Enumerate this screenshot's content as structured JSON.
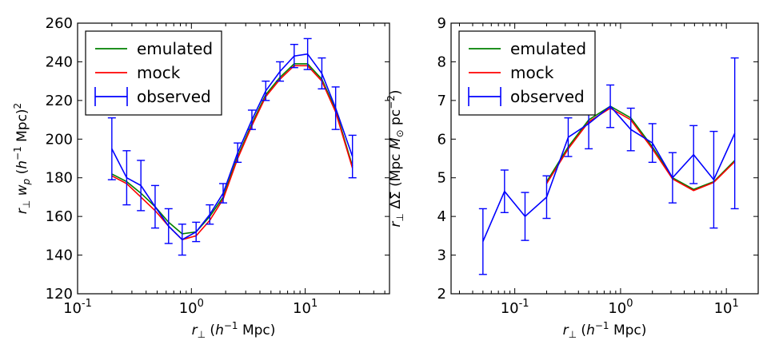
{
  "chart_data": [
    {
      "type": "line",
      "xscale": "log",
      "xlim": [
        0.1,
        55
      ],
      "ylim": [
        120,
        260
      ],
      "xlabel": "r⊥ (h⁻¹ Mpc)",
      "ylabel": "r⊥ wp (h⁻¹ Mpc)²",
      "x_tick_labels": [
        "10-1",
        "100",
        "101"
      ],
      "y_ticks": [
        120,
        140,
        160,
        180,
        200,
        220,
        240,
        260
      ],
      "legend_position": "top-left",
      "x": [
        0.2,
        0.27,
        0.36,
        0.48,
        0.63,
        0.83,
        1.1,
        1.45,
        1.9,
        2.55,
        3.4,
        4.5,
        6.0,
        8.0,
        10.5,
        14.0,
        18.5,
        26.0
      ],
      "series": [
        {
          "name": "emulated",
          "color": "#008000",
          "values": [
            182,
            178,
            172,
            165,
            157,
            151,
            152,
            160,
            170,
            191,
            208,
            223,
            232,
            239,
            239,
            231,
            215,
            186
          ]
        },
        {
          "name": "mock",
          "color": "#ff0000",
          "values": [
            181,
            177,
            170,
            163,
            155,
            148,
            150,
            158,
            169,
            190,
            207,
            222,
            231,
            238,
            238,
            230,
            214,
            185
          ]
        },
        {
          "name": "observed",
          "color": "#0000ff",
          "values": [
            195,
            180,
            176,
            165,
            155,
            148,
            152,
            161,
            172,
            193,
            210,
            225,
            235,
            243,
            244,
            234,
            216,
            191
          ],
          "errors": [
            16,
            14,
            13,
            11,
            9,
            8,
            5,
            5,
            5,
            5,
            5,
            5,
            5,
            6,
            8,
            8,
            11,
            11
          ]
        }
      ]
    },
    {
      "type": "line",
      "xscale": "log",
      "xlim": [
        0.025,
        20
      ],
      "ylim": [
        2,
        9
      ],
      "xlabel": "r⊥ (h⁻¹ Mpc)",
      "ylabel": "r⊥ ΔΣ (Mpc M⊙ pc⁻²)",
      "x_tick_labels": [
        "10-1",
        "100",
        "101"
      ],
      "y_ticks": [
        2,
        3,
        4,
        5,
        6,
        7,
        8,
        9
      ],
      "legend_position": "top-left",
      "x": [
        0.05,
        0.08,
        0.125,
        0.2,
        0.32,
        0.5,
        0.8,
        1.25,
        2.0,
        3.1,
        4.9,
        7.6,
        12.0
      ],
      "series": [
        {
          "name": "emulated",
          "color": "#008000",
          "x": [
            0.2,
            0.32,
            0.5,
            0.8,
            1.25,
            2.0,
            3.1,
            4.9,
            7.6,
            12.0
          ],
          "values": [
            4.9,
            5.8,
            6.5,
            6.85,
            6.55,
            5.8,
            5.0,
            4.7,
            4.9,
            5.45
          ]
        },
        {
          "name": "mock",
          "color": "#ff0000",
          "x": [
            0.2,
            0.32,
            0.5,
            0.8,
            1.25,
            2.0,
            3.1,
            4.9,
            7.6,
            12.0
          ],
          "values": [
            4.85,
            5.75,
            6.45,
            6.8,
            6.5,
            5.75,
            4.97,
            4.67,
            4.88,
            5.42
          ]
        },
        {
          "name": "observed",
          "color": "#0000ff",
          "x": [
            0.05,
            0.08,
            0.125,
            0.2,
            0.32,
            0.5,
            0.8,
            1.25,
            2.0,
            3.1,
            4.9,
            7.6,
            12.0
          ],
          "values": [
            3.35,
            4.65,
            4.0,
            4.5,
            6.05,
            6.4,
            6.85,
            6.25,
            5.9,
            5.0,
            5.6,
            4.95,
            6.15
          ],
          "errors": [
            0.85,
            0.55,
            0.62,
            0.55,
            0.5,
            0.65,
            0.55,
            0.55,
            0.5,
            0.65,
            0.75,
            1.25,
            1.95
          ]
        }
      ]
    }
  ]
}
